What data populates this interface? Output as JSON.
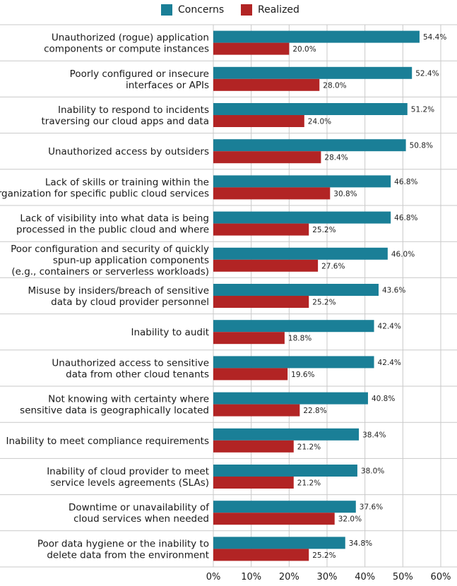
{
  "chart_data": {
    "type": "bar",
    "orientation": "horizontal",
    "title": "",
    "xlabel": "",
    "ylabel": "",
    "xlim": [
      0,
      60
    ],
    "x_ticks": [
      0,
      10,
      20,
      30,
      40,
      50,
      60
    ],
    "x_tick_labels": [
      "0%",
      "10%",
      "20%",
      "30%",
      "40%",
      "50%",
      "60%"
    ],
    "grid": true,
    "legend_position": "top-center",
    "categories": [
      [
        "Unauthorized (rogue) application",
        "components or compute instances"
      ],
      [
        "Poorly configured or insecure",
        "interfaces or APIs"
      ],
      [
        "Inability to respond to incidents",
        "traversing our cloud apps and data"
      ],
      [
        "Unauthorized access by outsiders"
      ],
      [
        "Lack of skills or training within the",
        "organization for specific public cloud services"
      ],
      [
        "Lack of visibility into what data is being",
        "processed in the public cloud and where"
      ],
      [
        "Poor configuration and security of quickly",
        "spun-up application components",
        "(e.g., containers or serverless workloads)"
      ],
      [
        "Misuse by insiders/breach of sensitive",
        "data by cloud provider personnel"
      ],
      [
        "Inability to audit"
      ],
      [
        "Unauthorized access to sensitive",
        "data from other cloud tenants"
      ],
      [
        "Not knowing with certainty where",
        "sensitive data is geographically located"
      ],
      [
        "Inability to meet compliance requirements"
      ],
      [
        "Inability of cloud provider to meet",
        "service levels agreements (SLAs)"
      ],
      [
        "Downtime or unavailability of",
        "cloud services when needed"
      ],
      [
        "Poor data hygiene or the inability to",
        "delete data from the environment"
      ]
    ],
    "series": [
      {
        "name": "Concerns",
        "color": "#1a7f97",
        "values": [
          54.4,
          52.4,
          51.2,
          50.8,
          46.8,
          46.8,
          46.0,
          43.6,
          42.4,
          42.4,
          40.8,
          38.4,
          38.0,
          37.6,
          34.8
        ],
        "labels": [
          "54.4%",
          "52.4%",
          "51.2%",
          "50.8%",
          "46.8%",
          "46.8%",
          "46.0%",
          "43.6%",
          "42.4%",
          "42.4%",
          "40.8%",
          "38.4%",
          "38.0%",
          "37.6%",
          "34.8%"
        ]
      },
      {
        "name": "Realized",
        "color": "#b22424",
        "values": [
          20.0,
          28.0,
          24.0,
          28.4,
          30.8,
          25.2,
          27.6,
          25.2,
          18.8,
          19.6,
          22.8,
          21.2,
          21.2,
          32.0,
          25.2
        ],
        "labels": [
          "20.0%",
          "28.0%",
          "24.0%",
          "28.4%",
          "30.8%",
          "25.2%",
          "27.6%",
          "25.2%",
          "18.8%",
          "19.6%",
          "22.8%",
          "21.2%",
          "21.2%",
          "32.0%",
          "25.2%"
        ]
      }
    ]
  }
}
